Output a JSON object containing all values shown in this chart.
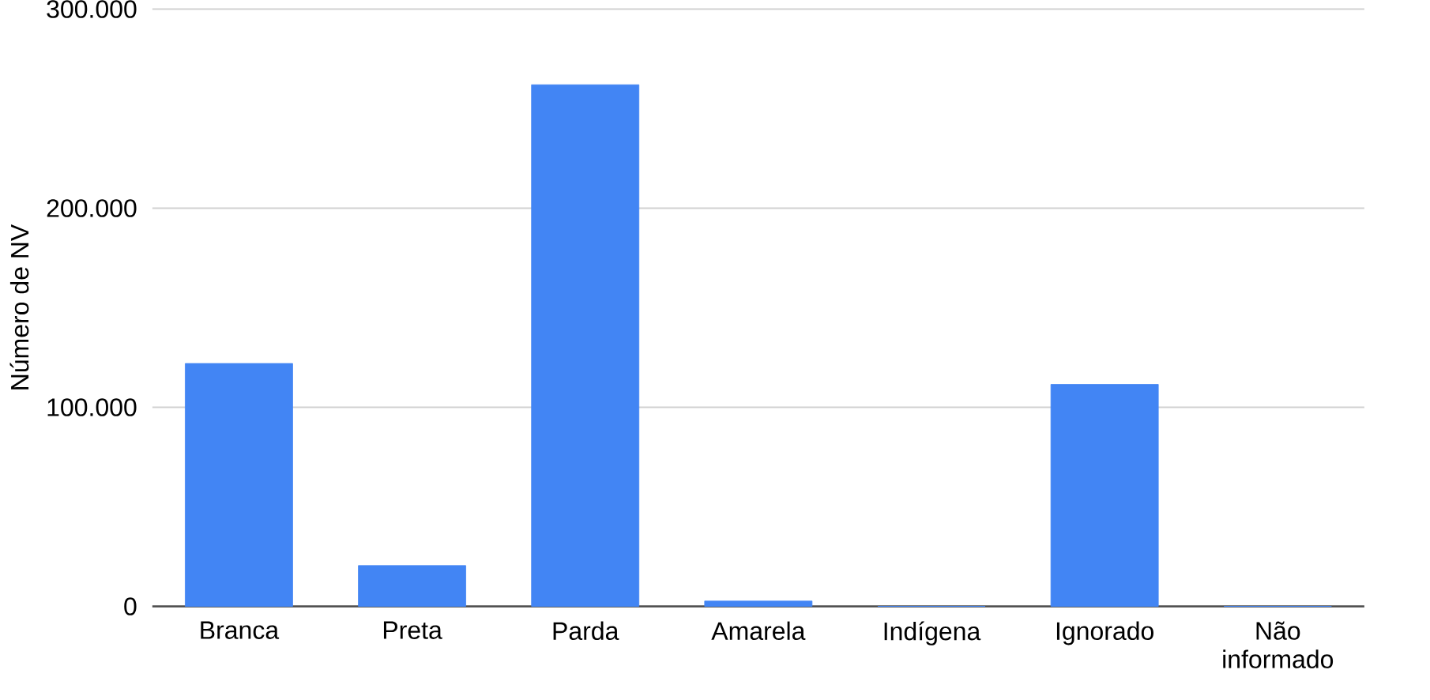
{
  "chart_data": {
    "type": "bar",
    "ylabel": "Número de NV",
    "categories": [
      "Branca",
      "Preta",
      "Parda",
      "Amarela",
      "Indígena",
      "Ignorado",
      "Não informado"
    ],
    "values": [
      122000,
      20500,
      262000,
      2700,
      0,
      111500,
      0
    ],
    "color": "#4285f4",
    "ylim": [
      0,
      300000
    ],
    "yticks": [
      {
        "value": 0,
        "label": "0"
      },
      {
        "value": 100000,
        "label": "100.000"
      },
      {
        "value": 200000,
        "label": "200.000"
      },
      {
        "value": 300000,
        "label": "300.000"
      }
    ],
    "grid": "y"
  }
}
